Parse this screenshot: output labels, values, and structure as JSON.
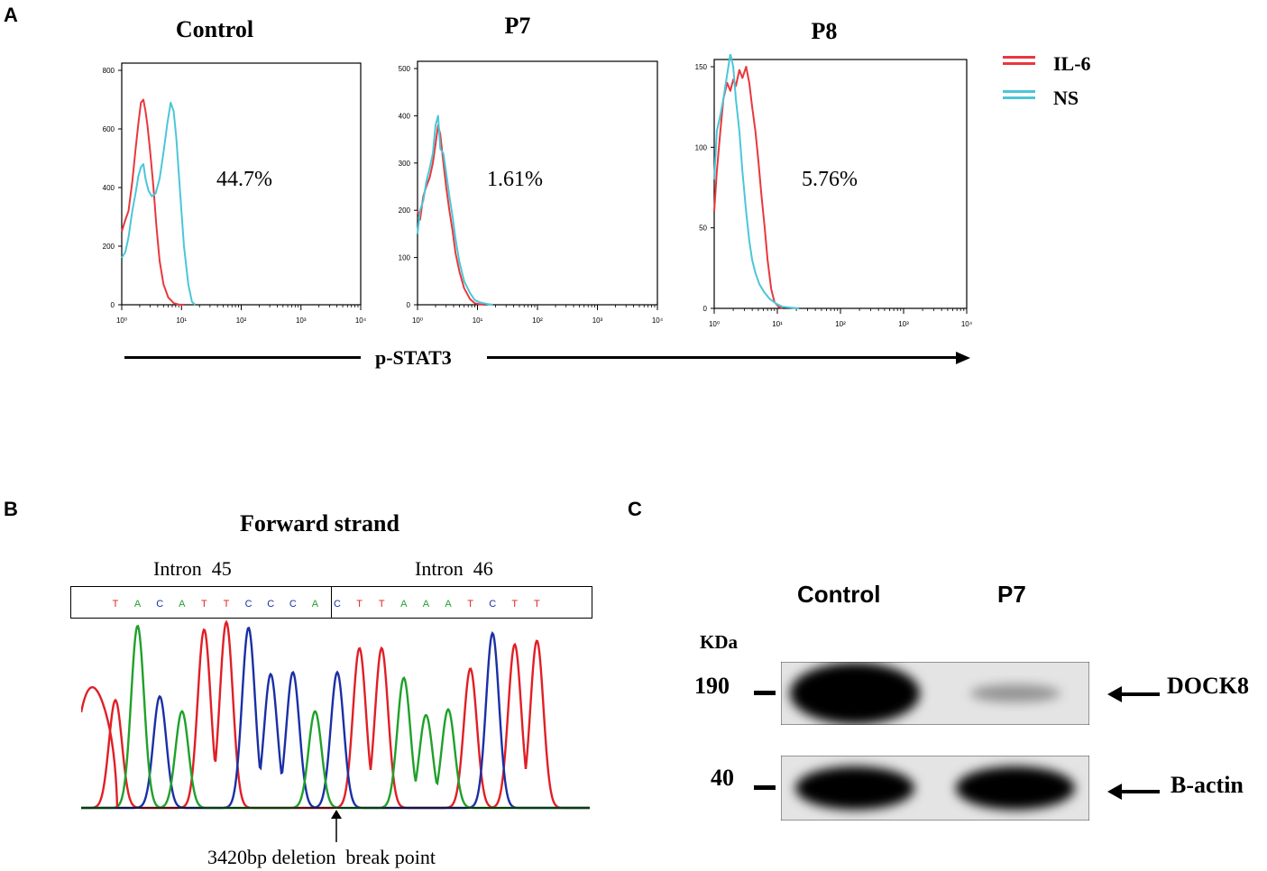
{
  "panels": {
    "a": {
      "letter": "A",
      "xaxis_label": "p-STAT3",
      "legend": [
        {
          "label": "IL-6",
          "color": "#e8383d"
        },
        {
          "label": "NS",
          "color": "#4cc6d8"
        }
      ]
    },
    "b": {
      "letter": "B",
      "title": "Forward strand",
      "left_label": "Intron  45",
      "right_label": "Intron  46",
      "left_seq": [
        "T",
        "A",
        "C",
        "A",
        "T",
        "T",
        "C",
        "C",
        "C",
        "A"
      ],
      "right_seq": [
        "C",
        "T",
        "T",
        "A",
        "A",
        "A",
        "T",
        "C",
        "T",
        "T"
      ],
      "annotation": "3420bp deletion  break point",
      "base_colors": {
        "A": "#1fa12a",
        "C": "#1a2fa6",
        "G": "#111111",
        "T": "#e01f26"
      }
    },
    "c": {
      "letter": "C",
      "lane_labels": [
        "Control",
        "P7"
      ],
      "kda_label": "KDa",
      "markers": [
        {
          "value": "190",
          "band": "DOCK8"
        },
        {
          "value": "40",
          "band": "B-actin"
        }
      ],
      "relative_band_intensity": {
        "DOCK8": {
          "Control": 1.0,
          "P7": 0.25
        },
        "B-actin": {
          "Control": 1.0,
          "P7": 1.0
        }
      }
    }
  },
  "chart_data": [
    {
      "type": "line",
      "title": "Control",
      "annotation": "44.7%",
      "x_scale": "log",
      "xlim": [
        1,
        10000
      ],
      "xticks": [
        "10⁰",
        "10¹",
        "10²",
        "10³",
        "10⁴"
      ],
      "ylim": [
        0,
        800
      ],
      "yticks": [
        "0",
        "200",
        "400",
        "600",
        "800"
      ],
      "series": [
        {
          "name": "IL-6",
          "color": "#e8383d",
          "x": [
            1,
            1.15,
            1.3,
            1.5,
            1.7,
            1.9,
            2.1,
            2.3,
            2.5,
            2.7,
            3.0,
            3.4,
            3.8,
            4.3,
            5.0,
            6.0,
            7.5,
            9.0,
            11
          ],
          "y": [
            250,
            290,
            320,
            420,
            530,
            620,
            690,
            700,
            660,
            610,
            520,
            400,
            270,
            150,
            70,
            25,
            5,
            1,
            0
          ]
        },
        {
          "name": "NS",
          "color": "#4cc6d8",
          "x": [
            1,
            1.15,
            1.3,
            1.5,
            1.7,
            1.9,
            2.1,
            2.3,
            2.5,
            2.8,
            3.2,
            3.7,
            4.3,
            5.0,
            5.8,
            6.6,
            7.4,
            8.2,
            9.5,
            11,
            13,
            15,
            17
          ],
          "y": [
            160,
            180,
            230,
            320,
            380,
            440,
            470,
            480,
            430,
            390,
            370,
            380,
            430,
            520,
            620,
            690,
            660,
            570,
            380,
            200,
            70,
            10,
            0
          ]
        }
      ]
    },
    {
      "type": "line",
      "title": "P7",
      "annotation": "1.61%",
      "x_scale": "log",
      "xlim": [
        1,
        10000
      ],
      "xticks": [
        "10⁰",
        "10¹",
        "10²",
        "10³",
        "10⁴"
      ],
      "ylim": [
        0,
        500
      ],
      "yticks": [
        "0",
        "100",
        "200",
        "300",
        "400",
        "500"
      ],
      "series": [
        {
          "name": "IL-6",
          "color": "#e8383d",
          "x": [
            1,
            1.1,
            1.25,
            1.4,
            1.6,
            1.8,
            2.0,
            2.2,
            2.4,
            2.7,
            3.0,
            3.4,
            3.8,
            4.3,
            5.0,
            6.0,
            7.5,
            9.0,
            11,
            13
          ],
          "y": [
            200,
            180,
            230,
            250,
            270,
            300,
            340,
            380,
            360,
            300,
            250,
            200,
            160,
            110,
            70,
            35,
            12,
            3,
            1,
            0
          ]
        },
        {
          "name": "NS",
          "color": "#4cc6d8",
          "x": [
            1,
            1.1,
            1.25,
            1.4,
            1.6,
            1.8,
            2.0,
            2.2,
            2.4,
            2.7,
            3.0,
            3.4,
            3.8,
            4.3,
            5.0,
            6.0,
            7.5,
            9.0,
            11,
            14,
            18
          ],
          "y": [
            150,
            200,
            220,
            260,
            290,
            320,
            380,
            400,
            330,
            320,
            280,
            230,
            190,
            140,
            90,
            50,
            25,
            10,
            5,
            2,
            0
          ]
        }
      ]
    },
    {
      "type": "line",
      "title": "P8",
      "annotation": "5.76%",
      "x_scale": "log",
      "xlim": [
        1,
        10000
      ],
      "xticks": [
        "10⁰",
        "10¹",
        "10²",
        "10³",
        "10⁴"
      ],
      "ylim": [
        0,
        150
      ],
      "yticks": [
        "0",
        "50",
        "100",
        "150"
      ],
      "series": [
        {
          "name": "IL-6",
          "color": "#e8383d",
          "x": [
            1,
            1.1,
            1.25,
            1.4,
            1.6,
            1.8,
            2.0,
            2.2,
            2.5,
            2.8,
            3.2,
            3.6,
            4.0,
            4.5,
            5.0,
            5.6,
            6.3,
            7.0,
            8.0,
            9.0,
            10.5,
            12
          ],
          "y": [
            60,
            85,
            110,
            130,
            140,
            135,
            142,
            138,
            148,
            143,
            150,
            140,
            125,
            110,
            92,
            70,
            50,
            30,
            12,
            4,
            1,
            0
          ]
        },
        {
          "name": "NS",
          "color": "#4cc6d8",
          "x": [
            1,
            1.1,
            1.25,
            1.4,
            1.6,
            1.8,
            2.0,
            2.2,
            2.5,
            2.8,
            3.2,
            3.6,
            4.0,
            4.5,
            5.2,
            6.2,
            7.5,
            9.5,
            12,
            16,
            22
          ],
          "y": [
            80,
            110,
            120,
            130,
            145,
            158,
            150,
            130,
            110,
            85,
            60,
            42,
            30,
            22,
            15,
            10,
            6,
            3,
            1,
            0.5,
            0
          ]
        }
      ]
    }
  ]
}
